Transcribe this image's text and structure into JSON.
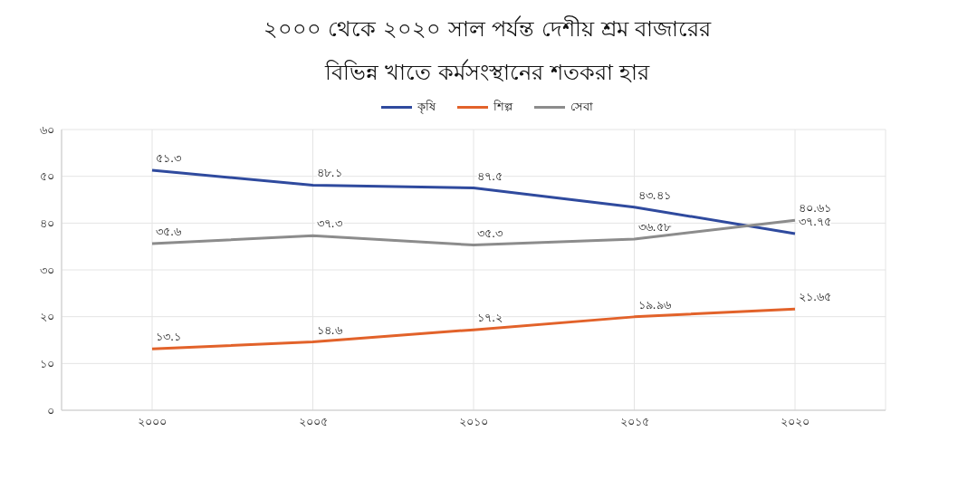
{
  "chart_data": {
    "type": "line",
    "title": "২০০০ থেকে ২০২০ সাল পর্যন্ত দেশীয় শ্রম বাজারের বিভিন্ন খাতে কর্মসংস্থানের শতকরা হার",
    "categories": [
      "২০০০",
      "২০০৫",
      "২০১০",
      "২০১৫",
      "২০২০"
    ],
    "series": [
      {
        "name": "কৃষি",
        "color": "#2f4a9e",
        "values": [
          51.3,
          48.1,
          47.5,
          43.41,
          37.75
        ],
        "value_labels": [
          "৫১.৩",
          "৪৮.১",
          "৪৭.৫",
          "৪৩.৪১",
          "৩৭.৭৫"
        ]
      },
      {
        "name": "শিল্প",
        "color": "#e2622a",
        "values": [
          13.1,
          14.6,
          17.2,
          19.96,
          21.65
        ],
        "value_labels": [
          "১৩.১",
          "১৪.৬",
          "১৭.২",
          "১৯.৯৬",
          "২১.৬৫"
        ]
      },
      {
        "name": "সেবা",
        "color": "#8c8c8c",
        "values": [
          35.6,
          37.3,
          35.3,
          36.58,
          40.61
        ],
        "value_labels": [
          "৩৫.৬",
          "৩৭.৩",
          "৩৫.৩",
          "৩৬.৫৮",
          "৪০.৬১"
        ]
      }
    ],
    "ylim": [
      0,
      60
    ],
    "yticks": [
      {
        "value": 0,
        "label": "০"
      },
      {
        "value": 10,
        "label": "১০"
      },
      {
        "value": 20,
        "label": "২০"
      },
      {
        "value": 30,
        "label": "৩০"
      },
      {
        "value": 40,
        "label": "৪০"
      },
      {
        "value": 50,
        "label": "৫০"
      },
      {
        "value": 60,
        "label": "৬০"
      }
    ],
    "grid": true,
    "legend": "top",
    "marker": "none",
    "line_style": "solid"
  }
}
